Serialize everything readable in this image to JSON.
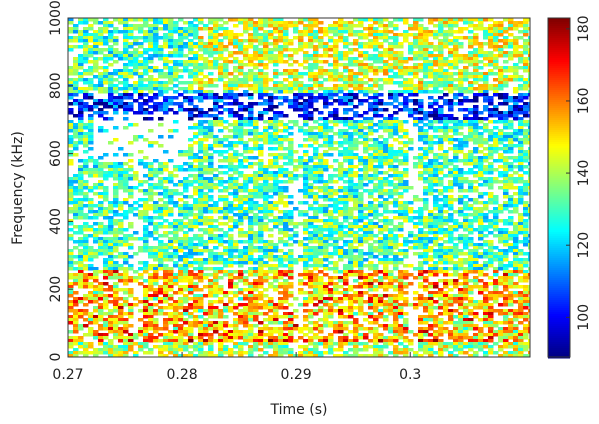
{
  "chart_data": {
    "type": "spectrogram",
    "xlabel": "Time (s)",
    "ylabel": "Frequency (kHz)",
    "xlim": [
      0.27,
      0.3105
    ],
    "xticks": [
      0.27,
      0.28,
      0.29,
      0.3
    ],
    "ylim": [
      0,
      1000
    ],
    "yticks": [
      0,
      200,
      400,
      600,
      800,
      1000
    ],
    "colormap": "jet",
    "clim": [
      89,
      183
    ],
    "cticks": [
      100,
      120,
      140,
      160,
      180
    ]
  }
}
